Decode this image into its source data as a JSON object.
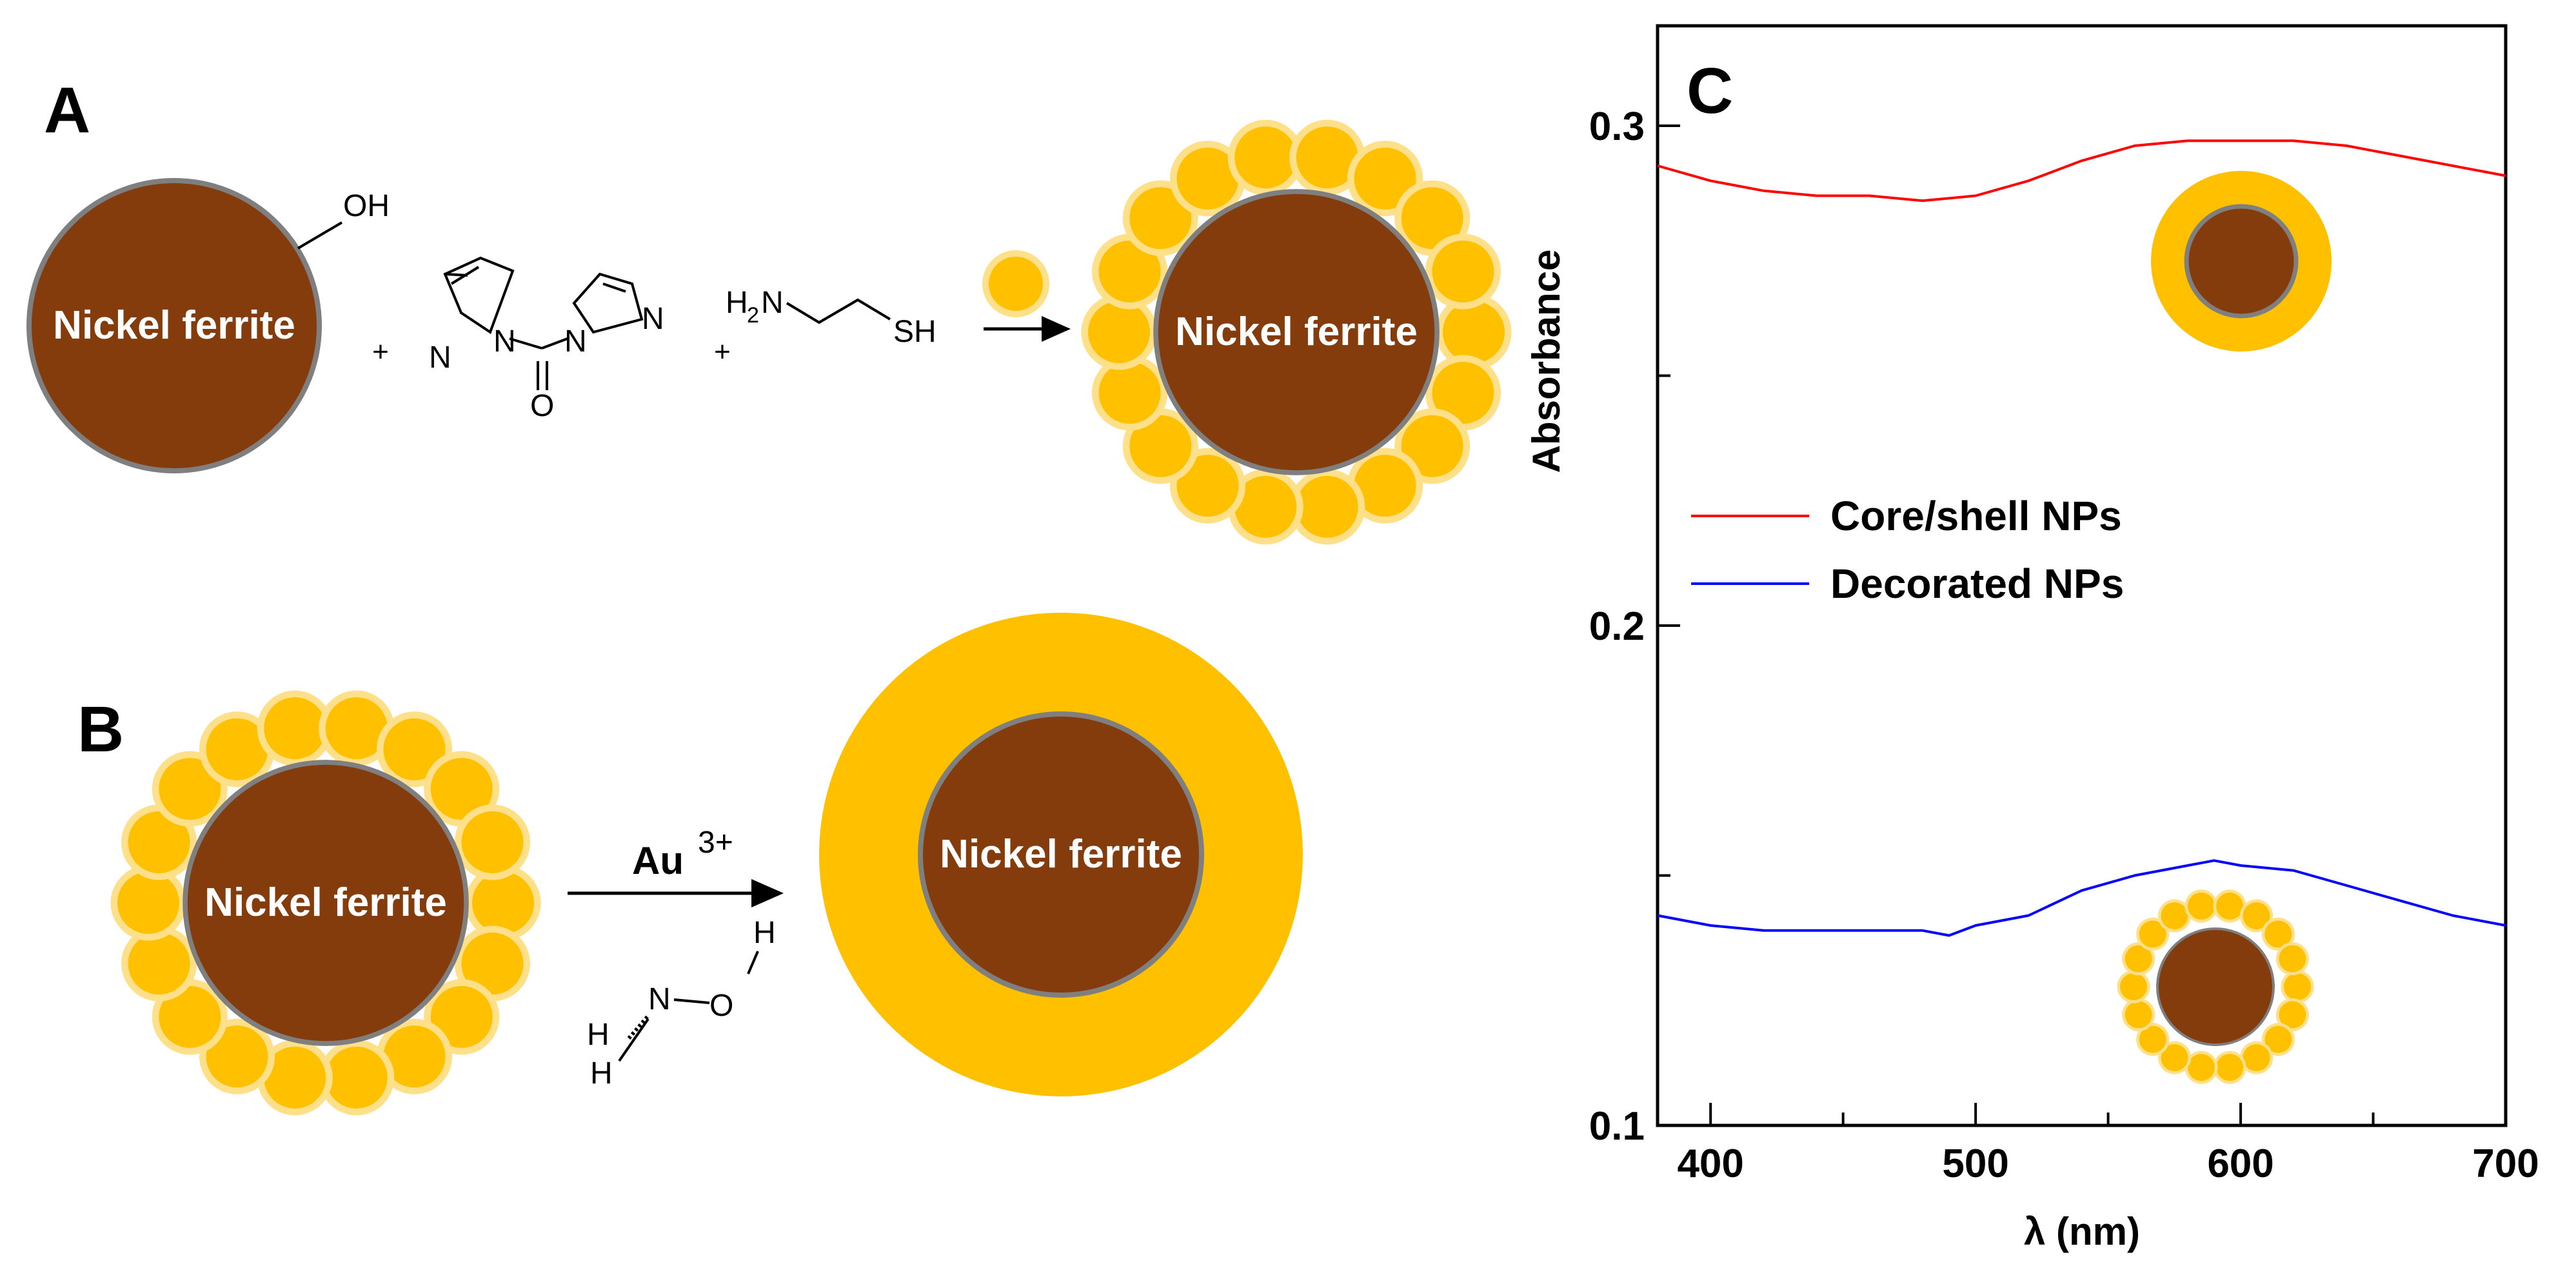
{
  "panels": {
    "a": "A",
    "b": "B",
    "c": "C"
  },
  "scheme": {
    "core_label": "Nickel ferrite",
    "hydroxyl": "OH",
    "plus": "+",
    "cdi_atoms": {
      "n": "N",
      "o": "O"
    },
    "cysteamine": {
      "h2": "H",
      "sub2": "2",
      "n": "N",
      "sh": "SH"
    },
    "reduction": {
      "au": "Au",
      "charge": "3+"
    },
    "hydroxylamine": {
      "h": "H",
      "n": "N",
      "o": "O"
    }
  },
  "colors": {
    "core": "#843c0c",
    "core_border": "#7f7f7f",
    "gold": "#ffc000",
    "gold_halo": "#ffe08a",
    "core_shell_line": "#ff0000",
    "decorated_line": "#0000ff"
  },
  "chart_data": {
    "type": "line",
    "panel": "C",
    "xlabel": "λ (nm)",
    "ylabel": "Absorbance",
    "xlim": [
      380,
      700
    ],
    "ylim": [
      0.1,
      0.32
    ],
    "xticks": [
      400,
      500,
      600,
      700
    ],
    "yticks": [
      0.1,
      0.2,
      0.3
    ],
    "ytick_labels": [
      "0.1",
      "0.2",
      "0.3"
    ],
    "grid": false,
    "legend_position": "middle-left",
    "series": [
      {
        "name": "Core/shell NPs",
        "color": "#ff0000",
        "x": [
          380,
          400,
          420,
          440,
          460,
          480,
          500,
          520,
          540,
          560,
          580,
          600,
          620,
          640,
          660,
          680,
          700
        ],
        "y": [
          0.292,
          0.289,
          0.287,
          0.286,
          0.286,
          0.285,
          0.286,
          0.289,
          0.293,
          0.296,
          0.297,
          0.297,
          0.297,
          0.296,
          0.294,
          0.292,
          0.29
        ]
      },
      {
        "name": "Decorated NPs",
        "color": "#0000ff",
        "x": [
          380,
          400,
          420,
          440,
          460,
          480,
          490,
          500,
          520,
          540,
          560,
          580,
          590,
          600,
          620,
          640,
          660,
          680,
          700
        ],
        "y": [
          0.142,
          0.14,
          0.139,
          0.139,
          0.139,
          0.139,
          0.138,
          0.14,
          0.142,
          0.147,
          0.15,
          0.152,
          0.153,
          0.152,
          0.151,
          0.148,
          0.145,
          0.142,
          0.14
        ]
      }
    ]
  }
}
